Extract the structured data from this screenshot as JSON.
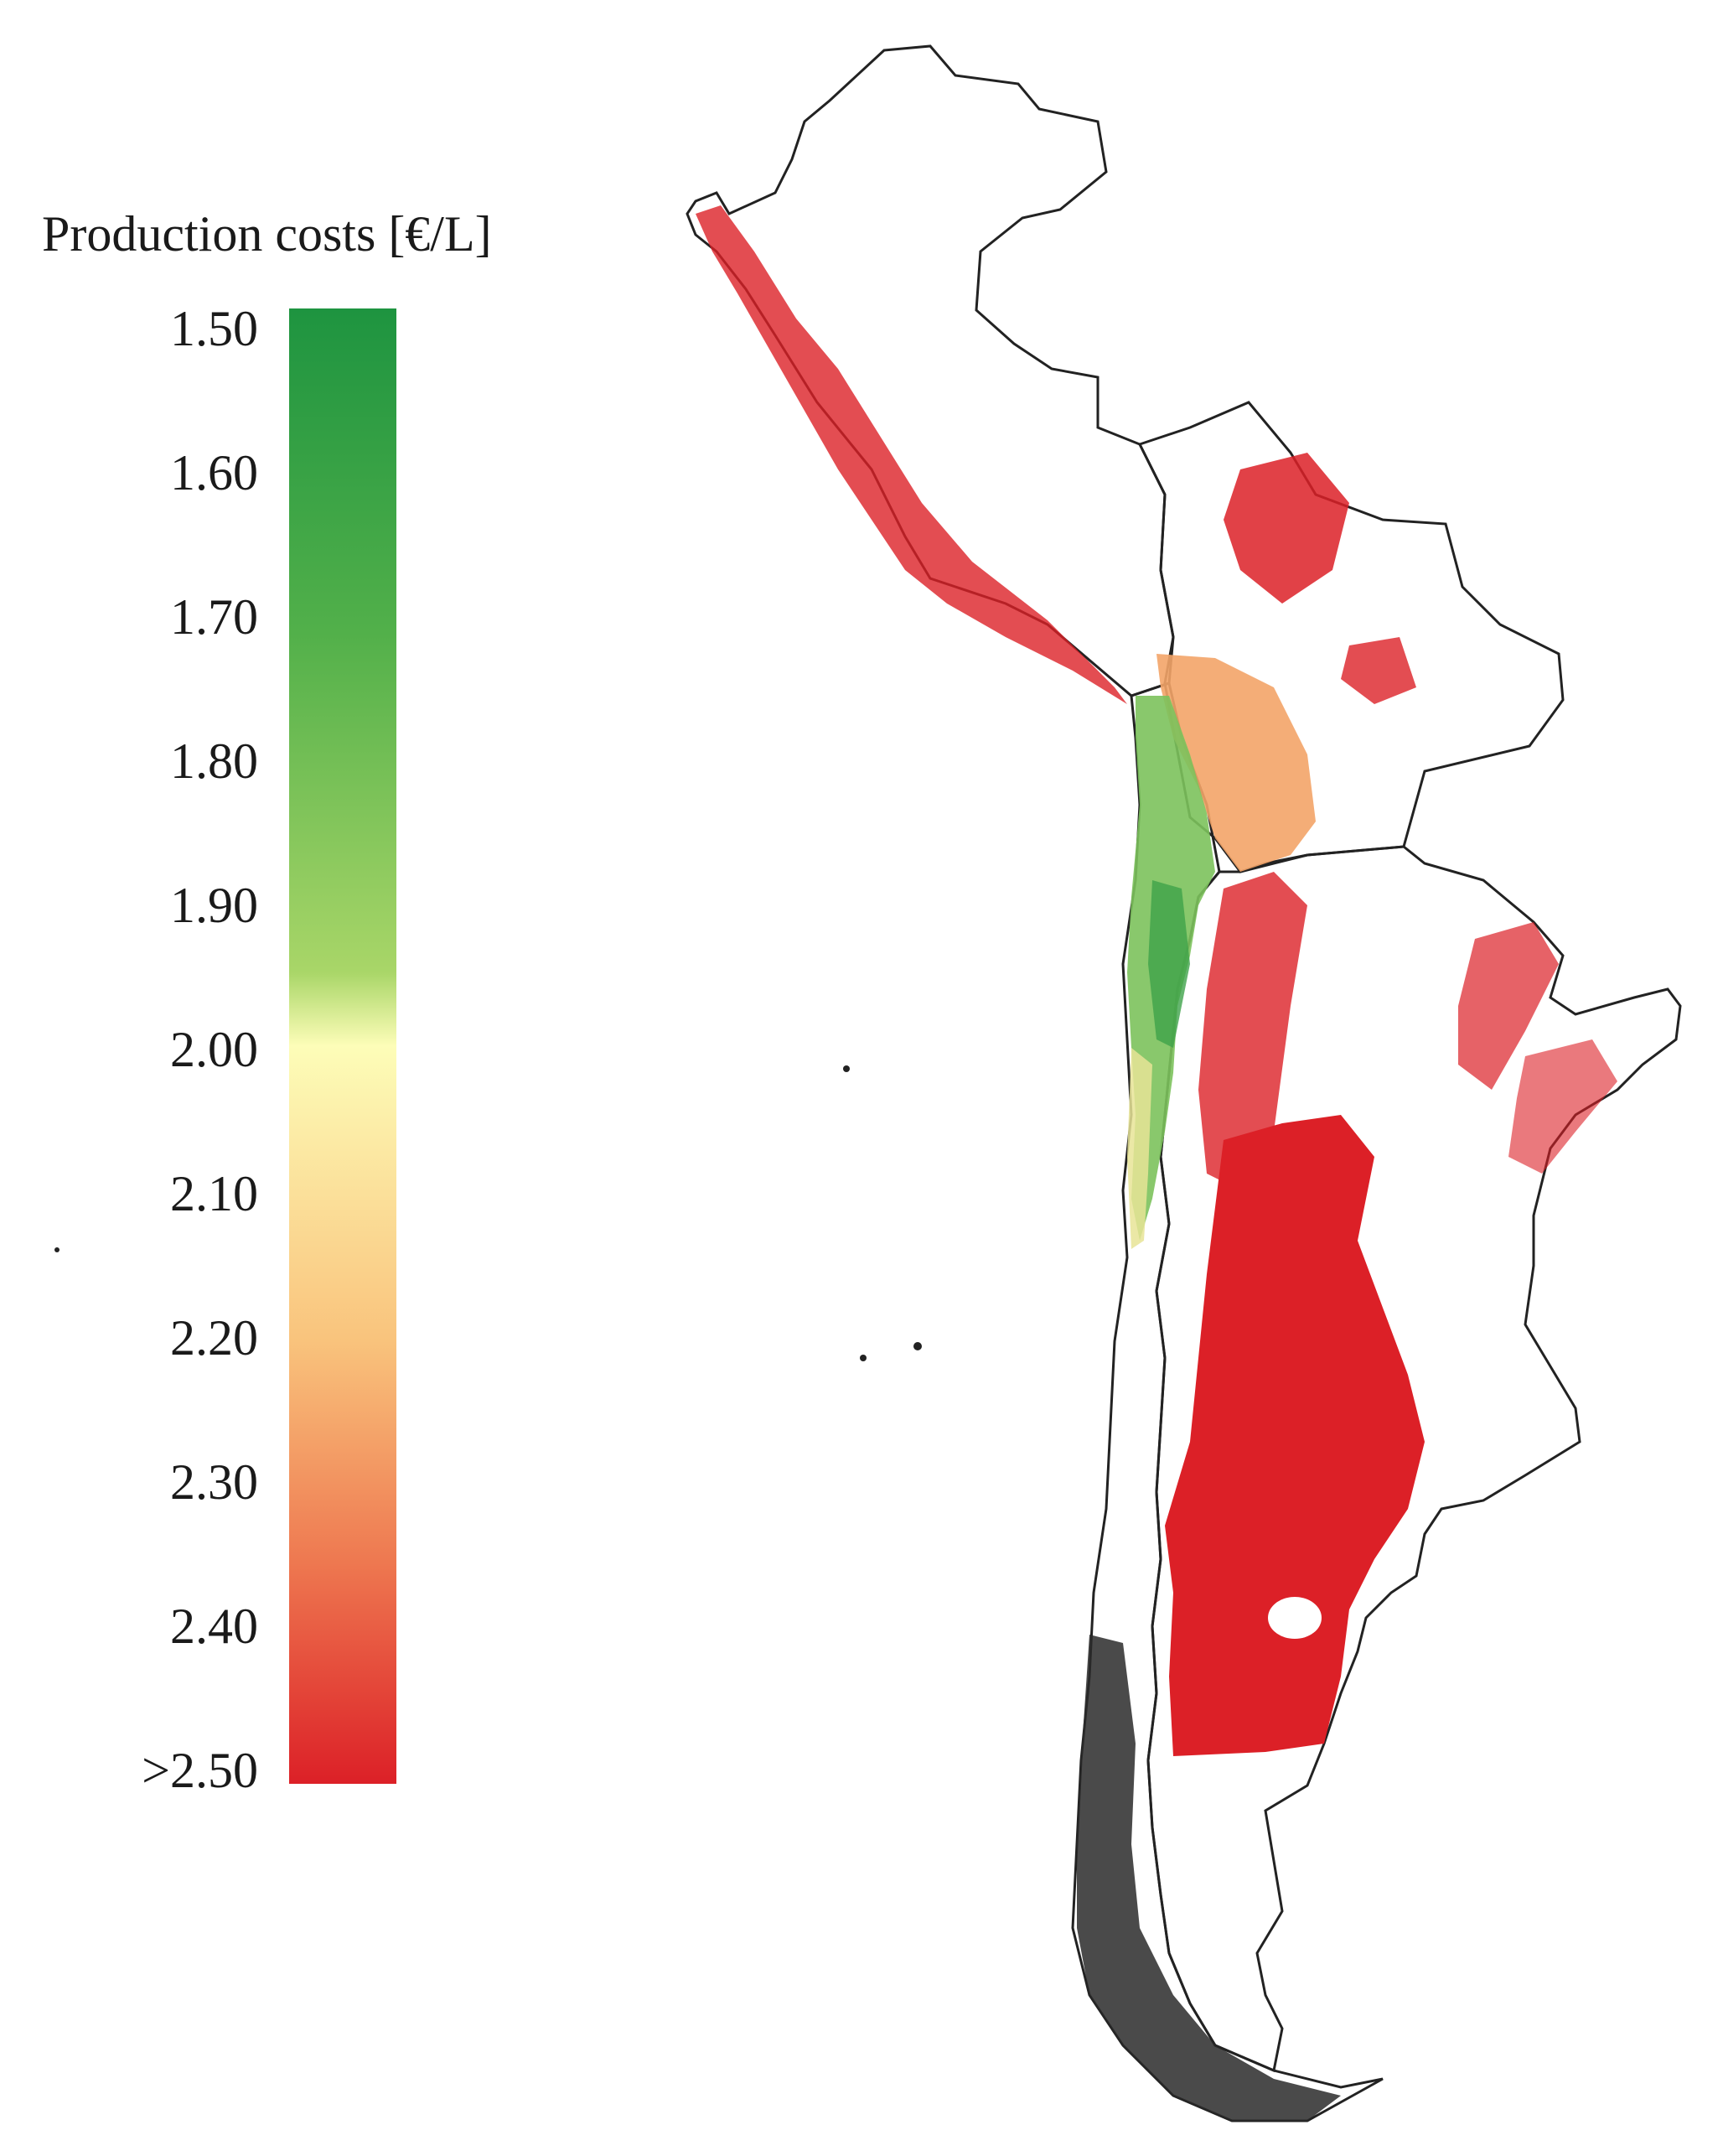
{
  "legend": {
    "title": "Production costs [€/L]",
    "ticks": [
      "1.50",
      "1.60",
      "1.70",
      "1.80",
      "1.90",
      "2.00",
      "2.10",
      "2.20",
      "2.30",
      "2.40",
      ">2.50"
    ],
    "colors": {
      "low": "#1e9440",
      "mid_low": "#a9d668",
      "mid": "#fdfdb8",
      "mid_high": "#f9c37c",
      "high": "#dc2027"
    }
  }
}
